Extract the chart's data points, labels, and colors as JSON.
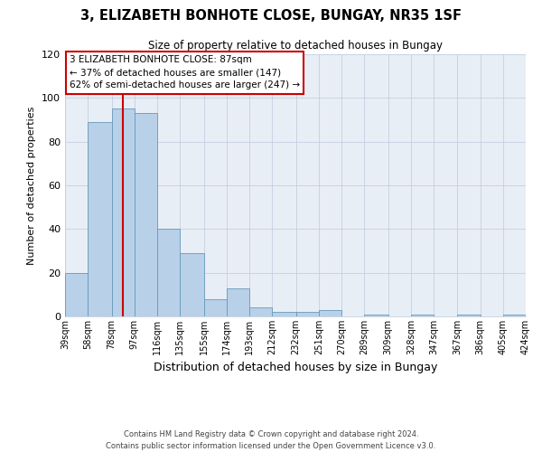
{
  "title": "3, ELIZABETH BONHOTE CLOSE, BUNGAY, NR35 1SF",
  "subtitle": "Size of property relative to detached houses in Bungay",
  "xlabel": "Distribution of detached houses by size in Bungay",
  "ylabel": "Number of detached properties",
  "ylim": [
    0,
    120
  ],
  "yticks": [
    0,
    20,
    40,
    60,
    80,
    100,
    120
  ],
  "bar_color": "#b8d0e8",
  "bar_edge_color": "#6699bb",
  "vline_x": 87,
  "all_bin_edges": [
    39,
    58,
    78,
    97,
    116,
    135,
    155,
    174,
    193,
    212,
    232,
    251,
    270,
    289,
    309,
    328,
    347,
    367,
    386,
    405,
    424
  ],
  "all_bar_values": [
    20,
    89,
    95,
    93,
    40,
    29,
    8,
    13,
    4,
    2,
    2,
    3,
    0,
    1,
    0,
    1,
    0,
    1,
    0,
    1
  ],
  "annotation_text": "3 ELIZABETH BONHOTE CLOSE: 87sqm\n← 37% of detached houses are smaller (147)\n62% of semi-detached houses are larger (247) →",
  "annotation_box_color": "#ffffff",
  "annotation_border_color": "#cc0000",
  "vline_color": "#cc0000",
  "footer_line1": "Contains HM Land Registry data © Crown copyright and database right 2024.",
  "footer_line2": "Contains public sector information licensed under the Open Government Licence v3.0.",
  "background_color": "#e8eef5",
  "fig_bg_color": "#ffffff"
}
